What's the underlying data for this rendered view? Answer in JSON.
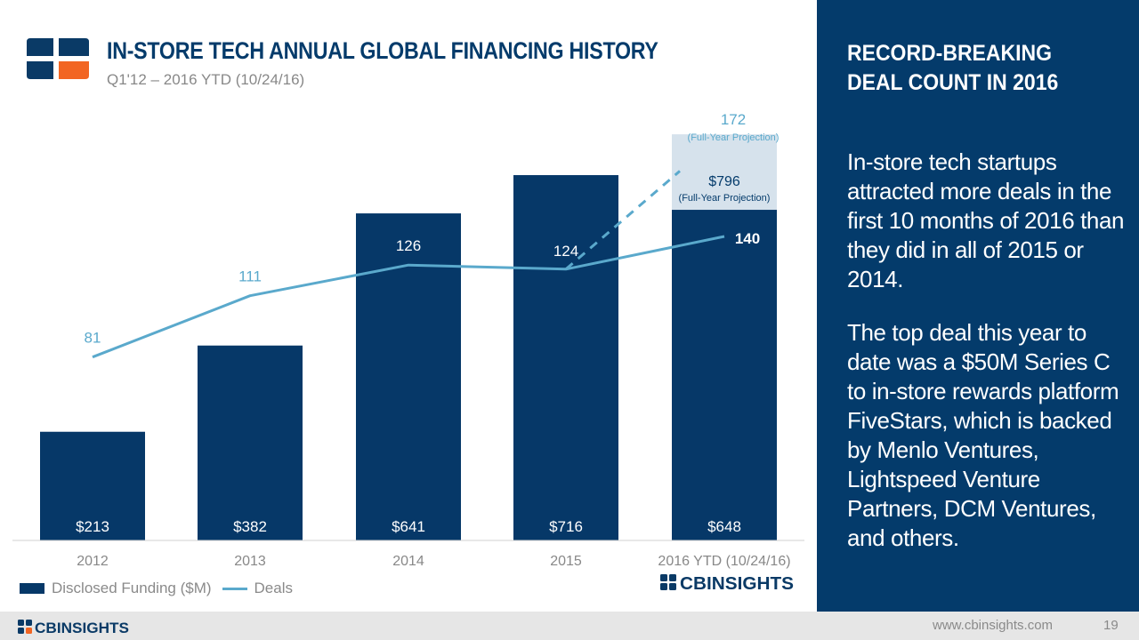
{
  "header": {
    "title": "IN-STORE TECH ANNUAL GLOBAL FINANCING HISTORY",
    "subtitle": "Q1'12 – 2016 YTD (10/24/16)"
  },
  "chart_data": {
    "type": "bar",
    "categories": [
      "2012",
      "2013",
      "2014",
      "2015",
      "2016 YTD (10/24/16)"
    ],
    "series": [
      {
        "name": "Disclosed Funding ($M)",
        "type": "bar",
        "values": [
          213,
          382,
          641,
          716,
          648
        ],
        "labels": [
          "$213",
          "$382",
          "$641",
          "$716",
          "$648"
        ]
      },
      {
        "name": "Deals",
        "type": "line",
        "values": [
          81,
          111,
          126,
          124,
          140
        ]
      }
    ],
    "projection": {
      "funding_value": 796,
      "funding_label": "$796",
      "funding_note": "(Full-Year Projection)",
      "deals_value": 172,
      "deals_label": "172",
      "deals_note": "(Full-Year Projection)"
    },
    "legend": [
      "Disclosed Funding ($M)",
      "Deals"
    ],
    "legend_position": "bottom-left",
    "colors": {
      "bar": "#063868",
      "line": "#5aa9cc",
      "projection_fill": "#d6e2ec"
    }
  },
  "chart_brand": "CBINSIGHTS",
  "sidebar": {
    "heading": "RECORD-BREAKING DEAL COUNT IN 2016",
    "paragraph1": "In-store tech startups attracted more deals in the first 10 months of 2016 than they did in all of 2015 or 2014.",
    "paragraph2": "The top deal this year to date was a $50M Series C to in-store rewards platform FiveStars, which is backed by Menlo Ventures, Lightspeed Venture Partners, DCM Ventures, and others."
  },
  "footer": {
    "brand": "CBINSIGHTS",
    "url": "www.cbinsights.com",
    "page": "19"
  }
}
